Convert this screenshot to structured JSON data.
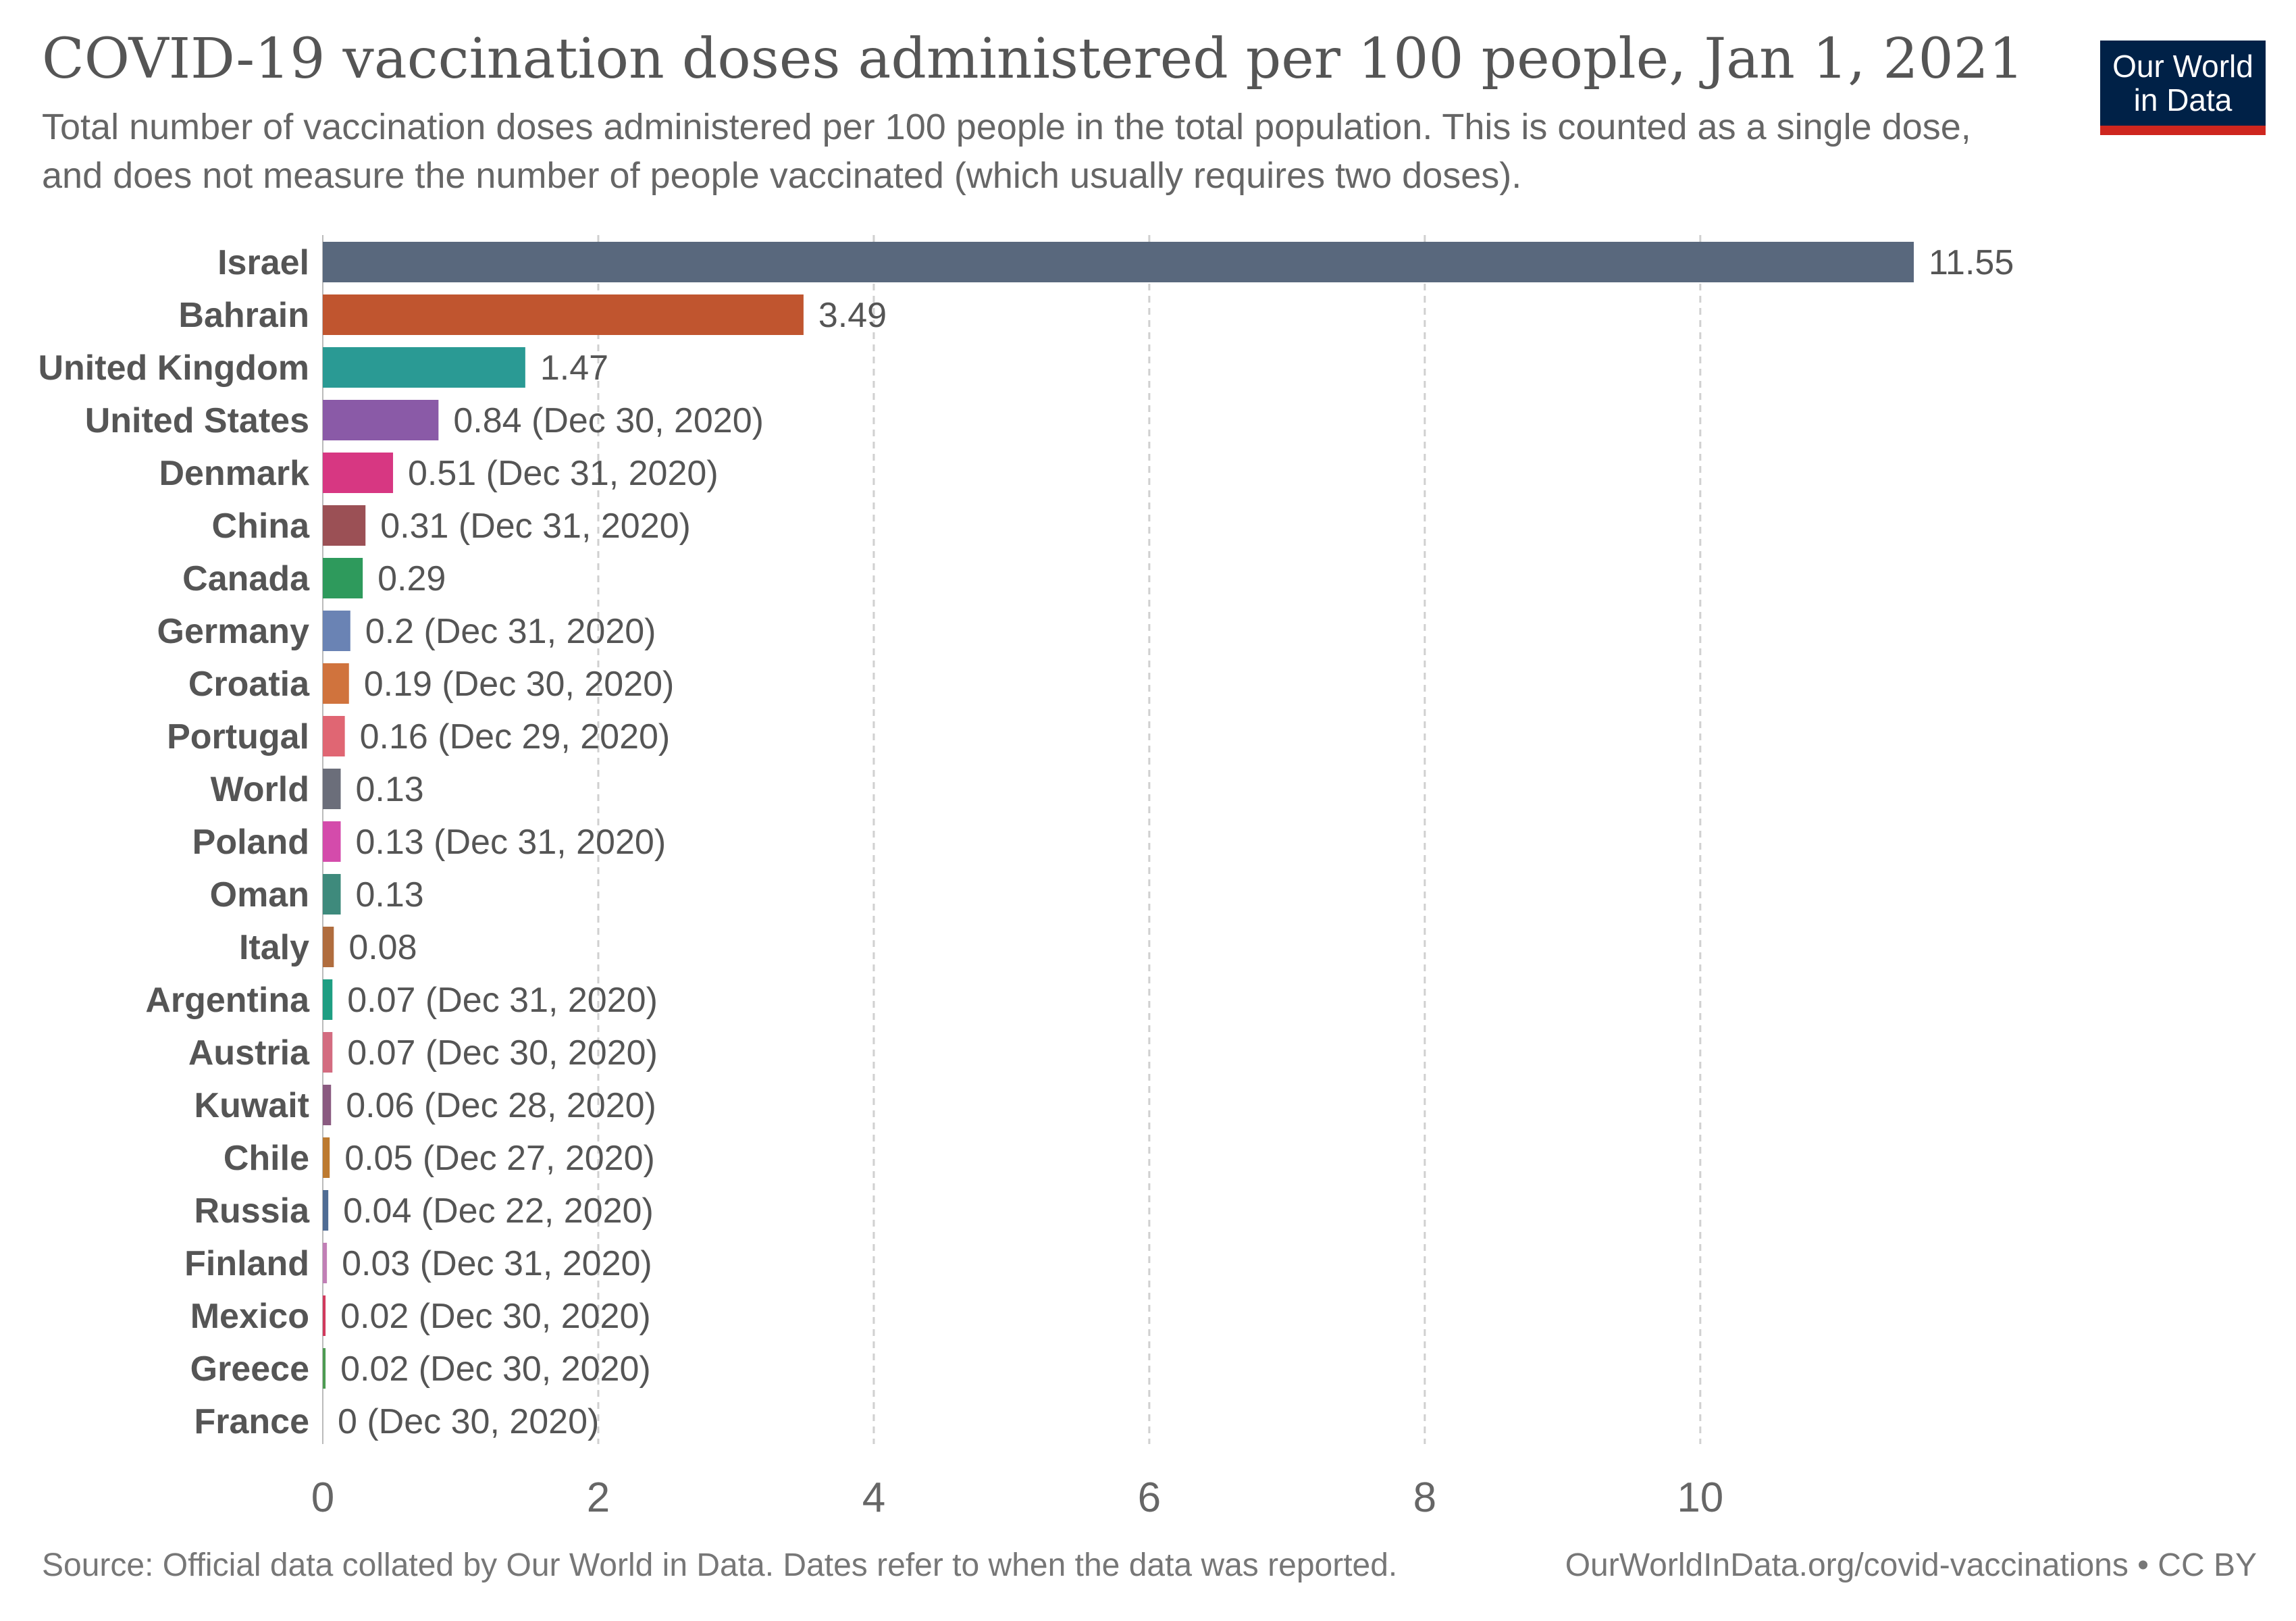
{
  "header": {
    "title": "COVID-19 vaccination doses administered per 100 people, Jan 1, 2021",
    "subtitle": "Total number of vaccination doses administered per 100 people in the total population. This is counted as a single dose, and does not measure the number of people vaccinated (which usually requires two doses).",
    "logo_line1": "Our World",
    "logo_line2": "in Data",
    "logo_bg_color": "#002147",
    "logo_accent_color": "#ce261e"
  },
  "footer": {
    "source": "Source: Official data collated by Our World in Data. Dates refer to when the data was reported.",
    "link": "OurWorldInData.org/covid-vaccinations • CC BY"
  },
  "chart_data": {
    "type": "bar",
    "orientation": "horizontal",
    "title": "COVID-19 vaccination doses administered per 100 people, Jan 1, 2021",
    "xlim": [
      0,
      11.55
    ],
    "xticks": [
      0,
      2,
      4,
      6,
      8,
      10
    ],
    "grid": "vertical dashed",
    "categories": [
      "Israel",
      "Bahrain",
      "United Kingdom",
      "United States",
      "Denmark",
      "China",
      "Canada",
      "Germany",
      "Croatia",
      "Portugal",
      "World",
      "Poland",
      "Oman",
      "Italy",
      "Argentina",
      "Austria",
      "Kuwait",
      "Chile",
      "Russia",
      "Finland",
      "Mexico",
      "Greece",
      "France"
    ],
    "values": [
      11.55,
      3.49,
      1.47,
      0.84,
      0.51,
      0.31,
      0.29,
      0.2,
      0.19,
      0.16,
      0.13,
      0.13,
      0.13,
      0.08,
      0.07,
      0.07,
      0.06,
      0.05,
      0.04,
      0.03,
      0.02,
      0.02,
      0
    ],
    "value_labels": [
      "11.55",
      "3.49",
      "1.47",
      "0.84 (Dec 30, 2020)",
      "0.51 (Dec 31, 2020)",
      "0.31 (Dec 31, 2020)",
      "0.29",
      "0.2 (Dec 31, 2020)",
      "0.19 (Dec 30, 2020)",
      "0.16 (Dec 29, 2020)",
      "0.13",
      "0.13 (Dec 31, 2020)",
      "0.13",
      "0.08",
      "0.07 (Dec 31, 2020)",
      "0.07 (Dec 30, 2020)",
      "0.06 (Dec 28, 2020)",
      "0.05 (Dec 27, 2020)",
      "0.04 (Dec 22, 2020)",
      "0.03 (Dec 31, 2020)",
      "0.02 (Dec 30, 2020)",
      "0.02 (Dec 30, 2020)",
      "0 (Dec 30, 2020)"
    ],
    "colors": [
      "#59687d",
      "#c0552f",
      "#2a9a94",
      "#8a5aa7",
      "#d73782",
      "#9b5055",
      "#2e9a5c",
      "#6a83b4",
      "#d0733d",
      "#e06673",
      "#6b6e7a",
      "#d44bab",
      "#3e8a7c",
      "#b06d3e",
      "#1e9e82",
      "#d36c80",
      "#8a5a80",
      "#bd7a30",
      "#4f6c94",
      "#c17fb6",
      "#d13a5d",
      "#4d9b52",
      "#9aaac4"
    ]
  }
}
